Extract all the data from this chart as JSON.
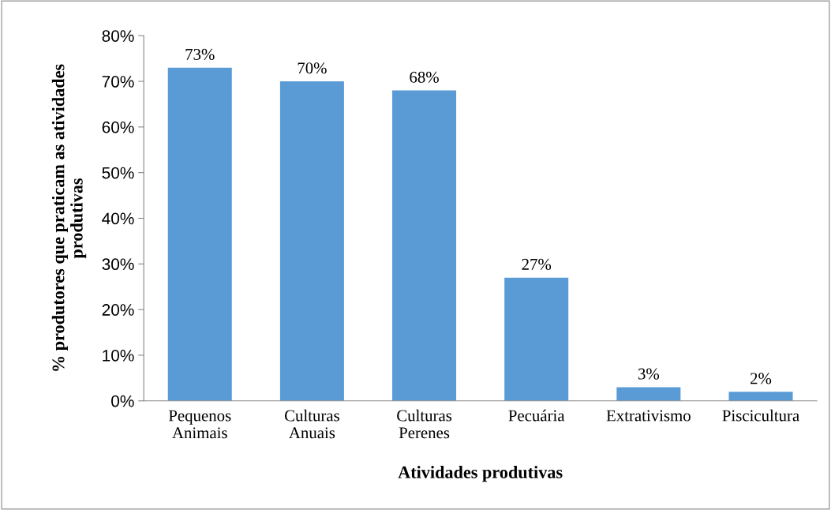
{
  "chart_data": {
    "type": "bar",
    "xlabel": "Atividades produtivas",
    "ylabel": "% produtores que praticam as atividades\nprodutivas",
    "categories": [
      "Pequenos\nAnimais",
      "Culturas\nAnuais",
      "Culturas\nPerenes",
      "Pecuária",
      "Extrativismo",
      "Piscicultura"
    ],
    "values": [
      73,
      70,
      68,
      27,
      3,
      2
    ],
    "value_labels": [
      "73%",
      "70%",
      "68%",
      "27%",
      "3%",
      "2%"
    ],
    "color": "#5b9bd5",
    "ylim": [
      0,
      80
    ],
    "yticks": [
      {
        "value": 0,
        "label": "0%"
      },
      {
        "value": 10,
        "label": "10%"
      },
      {
        "value": 20,
        "label": "20%"
      },
      {
        "value": 30,
        "label": "30%"
      },
      {
        "value": 40,
        "label": "40%"
      },
      {
        "value": 50,
        "label": "50%"
      },
      {
        "value": 60,
        "label": "60%"
      },
      {
        "value": 70,
        "label": "70%"
      },
      {
        "value": 80,
        "label": "80%"
      }
    ],
    "grid": false,
    "legend": false
  }
}
